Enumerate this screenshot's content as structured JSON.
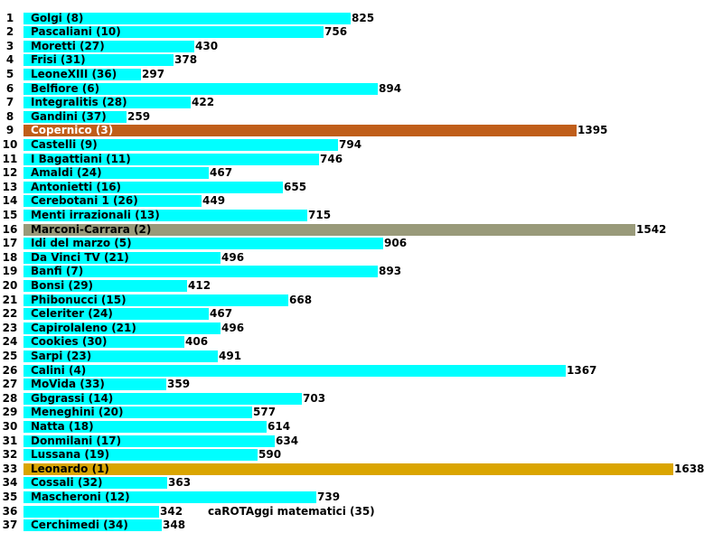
{
  "chart_data": {
    "type": "bar",
    "orientation": "horizontal",
    "title": "",
    "xlabel": "",
    "ylabel": "",
    "xlim": [
      0,
      1638
    ],
    "grid": false,
    "legend": "none",
    "default_color": "#00ffff",
    "highlight_colors": {
      "1": "#daa500",
      "2": "#999a7a",
      "3": "#c05e1a"
    },
    "bars": [
      {
        "row": 1,
        "team": "Golgi",
        "position": 8,
        "value": 825
      },
      {
        "row": 2,
        "team": "Pascaliani",
        "position": 10,
        "value": 756
      },
      {
        "row": 3,
        "team": "Moretti",
        "position": 27,
        "value": 430
      },
      {
        "row": 4,
        "team": "Frisi",
        "position": 31,
        "value": 378
      },
      {
        "row": 5,
        "team": "LeoneXIII",
        "position": 36,
        "value": 297
      },
      {
        "row": 6,
        "team": "Belfiore",
        "position": 6,
        "value": 894
      },
      {
        "row": 7,
        "team": "Integralitis",
        "position": 28,
        "value": 422
      },
      {
        "row": 8,
        "team": "Gandini",
        "position": 37,
        "value": 259
      },
      {
        "row": 9,
        "team": "Copernico",
        "position": 3,
        "value": 1395
      },
      {
        "row": 10,
        "team": "Castelli",
        "position": 9,
        "value": 794
      },
      {
        "row": 11,
        "team": "I Bagattiani",
        "position": 11,
        "value": 746
      },
      {
        "row": 12,
        "team": "Amaldi",
        "position": 24,
        "value": 467
      },
      {
        "row": 13,
        "team": "Antonietti",
        "position": 16,
        "value": 655
      },
      {
        "row": 14,
        "team": "Cerebotani 1",
        "position": 26,
        "value": 449
      },
      {
        "row": 15,
        "team": "Menti irrazionali",
        "position": 13,
        "value": 715
      },
      {
        "row": 16,
        "team": "Marconi-Carrara",
        "position": 2,
        "value": 1542
      },
      {
        "row": 17,
        "team": "Idi del marzo",
        "position": 5,
        "value": 906
      },
      {
        "row": 18,
        "team": "Da Vinci TV",
        "position": 21,
        "value": 496
      },
      {
        "row": 19,
        "team": "Banfi",
        "position": 7,
        "value": 893
      },
      {
        "row": 20,
        "team": "Bonsi",
        "position": 29,
        "value": 412
      },
      {
        "row": 21,
        "team": "Phibonucci",
        "position": 15,
        "value": 668
      },
      {
        "row": 22,
        "team": "Celeriter",
        "position": 24,
        "value": 467
      },
      {
        "row": 23,
        "team": "Capirolaleno",
        "position": 21,
        "value": 496
      },
      {
        "row": 24,
        "team": "Cookies",
        "position": 30,
        "value": 406
      },
      {
        "row": 25,
        "team": "Sarpi",
        "position": 23,
        "value": 491
      },
      {
        "row": 26,
        "team": "Calini",
        "position": 4,
        "value": 1367
      },
      {
        "row": 27,
        "team": "MoVida",
        "position": 33,
        "value": 359
      },
      {
        "row": 28,
        "team": "Gbgrassi",
        "position": 14,
        "value": 703
      },
      {
        "row": 29,
        "team": "Meneghini",
        "position": 20,
        "value": 577
      },
      {
        "row": 30,
        "team": "Natta",
        "position": 18,
        "value": 614
      },
      {
        "row": 31,
        "team": "Donmilani",
        "position": 17,
        "value": 634
      },
      {
        "row": 32,
        "team": "Lussana",
        "position": 19,
        "value": 590
      },
      {
        "row": 33,
        "team": "Leonardo",
        "position": 1,
        "value": 1638
      },
      {
        "row": 34,
        "team": "Cossali",
        "position": 32,
        "value": 363
      },
      {
        "row": 35,
        "team": "Mascheroni",
        "position": 12,
        "value": 739
      },
      {
        "row": 36,
        "team": "caROTAggi matematici",
        "position": 35,
        "value": 342
      },
      {
        "row": 37,
        "team": "Cerchimedi",
        "position": 34,
        "value": 348
      }
    ]
  }
}
